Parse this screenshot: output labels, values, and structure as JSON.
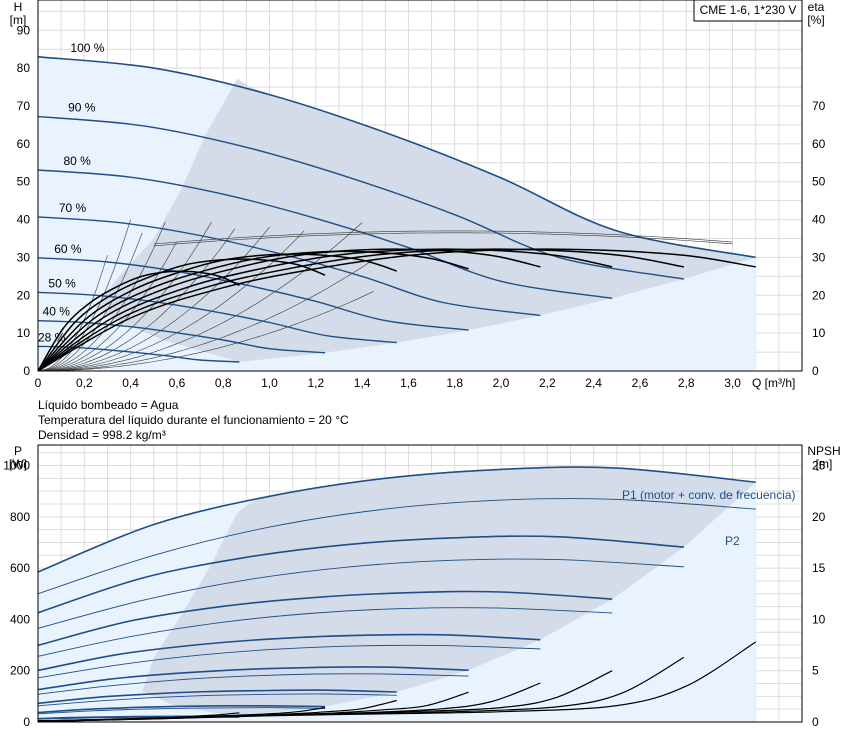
{
  "model_box": "CME 1-6, 1*230 V",
  "notes": [
    "Líquido bombeado = Agua",
    "Temperatura del líquido durante el funcionamiento = 20 °C",
    "Densidad = 998.2 kg/m³"
  ],
  "colors": {
    "grid": "#dcdcdc",
    "axis": "#000000",
    "curve_blue": "#1f4e89",
    "thin_line": "#3a3a3a",
    "region_dark": "#d3dce8",
    "region_light": "#e9f3fd"
  },
  "chart_data": [
    {
      "type": "line",
      "name": "qh",
      "xlabel": "Q [m³/h]",
      "ylabel": "H\n[m]",
      "y2label": "eta\n[%]",
      "xlim": [
        0,
        3.3
      ],
      "ylim": [
        0,
        98
      ],
      "xticks": [
        "0",
        "0,2",
        "0,4",
        "0,6",
        "0,8",
        "1,0",
        "1,2",
        "1,4",
        "1,6",
        "1,8",
        "2,0",
        "2,2",
        "2,4",
        "2,6",
        "2,8",
        "3,0"
      ],
      "yticks": [
        0,
        10,
        20,
        30,
        40,
        50,
        60,
        70,
        80,
        90
      ],
      "y2ticks": [
        0,
        10,
        20,
        30,
        40,
        50,
        60,
        70
      ],
      "grid": true,
      "speed_labels": [
        "100 %",
        "90 %",
        "80 %",
        "70 %",
        "60 %",
        "50 %",
        "40 %",
        "28 %"
      ],
      "speed_fractions": [
        1.0,
        0.9,
        0.8,
        0.7,
        0.6,
        0.5,
        0.4,
        0.28
      ],
      "head_series": [
        {
          "x": [
            0,
            0.5,
            1.0,
            1.5,
            2.0,
            2.5,
            3.1
          ],
          "y": [
            83.0,
            80.0,
            73.0,
            63.0,
            51.0,
            37.0,
            30.0
          ]
        },
        {
          "x": [
            0,
            0.45,
            0.9,
            1.35,
            1.8,
            2.25,
            2.79
          ],
          "y": [
            67.2,
            64.8,
            59.1,
            51.0,
            41.3,
            30.0,
            24.3
          ]
        },
        {
          "x": [
            0,
            0.4,
            0.8,
            1.2,
            1.6,
            2.0,
            2.48
          ],
          "y": [
            53.1,
            51.2,
            46.7,
            40.3,
            32.6,
            23.7,
            19.2
          ]
        },
        {
          "x": [
            0,
            0.35,
            0.7,
            1.05,
            1.4,
            1.75,
            2.17
          ],
          "y": [
            40.7,
            39.2,
            35.8,
            30.9,
            25.0,
            18.1,
            14.7
          ]
        },
        {
          "x": [
            0,
            0.3,
            0.6,
            0.9,
            1.2,
            1.5,
            1.86
          ],
          "y": [
            29.9,
            28.8,
            26.3,
            22.7,
            18.4,
            13.3,
            10.8
          ]
        },
        {
          "x": [
            0,
            0.25,
            0.5,
            0.75,
            1.0,
            1.25,
            1.55
          ],
          "y": [
            20.8,
            20.0,
            18.3,
            15.8,
            12.8,
            9.3,
            7.5
          ]
        },
        {
          "x": [
            0,
            0.2,
            0.4,
            0.6,
            0.8,
            1.0,
            1.24
          ],
          "y": [
            13.3,
            12.8,
            11.7,
            10.1,
            8.2,
            5.9,
            4.8
          ]
        },
        {
          "x": [
            0,
            0.14,
            0.28,
            0.42,
            0.56,
            0.7,
            0.87
          ],
          "y": [
            6.5,
            6.3,
            5.7,
            4.9,
            4.0,
            2.9,
            2.4
          ]
        }
      ],
      "eta_series": [
        {
          "x": [
            0,
            0.4,
            0.8,
            1.2,
            1.6,
            2.0,
            2.4,
            2.8,
            3.1
          ],
          "y": [
            0,
            14.0,
            22.0,
            27.0,
            30.5,
            32.0,
            32.0,
            30.5,
            27.5
          ]
        },
        {
          "x": [
            0,
            0.36,
            0.72,
            1.08,
            1.44,
            1.8,
            2.16,
            2.52,
            2.79
          ],
          "y": [
            0,
            14.0,
            22.0,
            27.0,
            30.5,
            32.0,
            32.0,
            30.5,
            27.5
          ]
        },
        {
          "x": [
            0,
            0.32,
            0.64,
            0.96,
            1.28,
            1.6,
            1.92,
            2.24,
            2.48
          ],
          "y": [
            0,
            14.0,
            22.0,
            27.0,
            30.5,
            32.0,
            32.0,
            30.5,
            27.5
          ]
        },
        {
          "x": [
            0,
            0.28,
            0.56,
            0.84,
            1.12,
            1.4,
            1.68,
            1.96,
            2.17
          ],
          "y": [
            0,
            14.0,
            22.0,
            27.0,
            30.5,
            32.0,
            32.0,
            30.5,
            27.5
          ]
        },
        {
          "x": [
            0,
            0.24,
            0.48,
            0.72,
            0.96,
            1.2,
            1.44,
            1.68,
            1.86
          ],
          "y": [
            0,
            13.8,
            21.6,
            26.5,
            29.9,
            31.4,
            31.4,
            29.9,
            27.0
          ]
        },
        {
          "x": [
            0,
            0.2,
            0.4,
            0.6,
            0.8,
            1.0,
            1.2,
            1.4,
            1.55
          ],
          "y": [
            0,
            13.4,
            21.1,
            25.9,
            29.3,
            30.7,
            30.7,
            29.3,
            26.4
          ]
        },
        {
          "x": [
            0,
            0.16,
            0.32,
            0.48,
            0.64,
            0.8,
            0.96,
            1.12,
            1.24
          ],
          "y": [
            0,
            12.9,
            20.2,
            24.8,
            28.1,
            29.4,
            29.4,
            28.1,
            25.3
          ]
        },
        {
          "x": [
            0,
            0.112,
            0.224,
            0.336,
            0.448,
            0.56,
            0.672,
            0.784,
            0.87
          ],
          "y": [
            0,
            11.5,
            18.0,
            22.1,
            25.0,
            26.2,
            26.2,
            25.0,
            22.6
          ]
        }
      ]
    },
    {
      "type": "line",
      "name": "power_npsh",
      "xlabel": "",
      "ylabel": "P\n[W]",
      "y2label": "NPSH\n[m]",
      "xlim": [
        0,
        3.3
      ],
      "ylim": [
        0,
        1080
      ],
      "y2lim": [
        0,
        27
      ],
      "yticks": [
        0,
        200,
        400,
        600,
        800,
        1000
      ],
      "y2ticks": [
        0,
        5,
        10,
        15,
        20,
        25
      ],
      "grid": true,
      "series_labels": [
        "P1 (motor + conv. de frecuencia)",
        "P2"
      ],
      "p1_series": [
        {
          "x": [
            0,
            0.5,
            1.0,
            1.5,
            2.0,
            2.5,
            3.1
          ],
          "y": [
            585,
            770,
            880,
            950,
            985,
            990,
            935
          ]
        },
        {
          "x": [
            0,
            0.45,
            0.9,
            1.35,
            1.8,
            2.25,
            2.79
          ],
          "y": [
            426,
            561,
            642,
            693,
            718,
            722,
            682
          ]
        },
        {
          "x": [
            0,
            0.4,
            0.8,
            1.2,
            1.6,
            2.0,
            2.48
          ],
          "y": [
            299,
            394,
            451,
            486,
            504,
            507,
            479
          ]
        },
        {
          "x": [
            0,
            0.35,
            0.7,
            1.05,
            1.4,
            1.75,
            2.17
          ],
          "y": [
            201,
            264,
            302,
            326,
            338,
            340,
            321
          ]
        },
        {
          "x": [
            0,
            0.3,
            0.6,
            0.9,
            1.2,
            1.5,
            1.86
          ],
          "y": [
            126,
            166,
            190,
            205,
            213,
            214,
            202
          ]
        },
        {
          "x": [
            0,
            0.25,
            0.5,
            0.75,
            1.0,
            1.25,
            1.55
          ],
          "y": [
            73,
            96,
            110,
            119,
            123,
            124,
            117
          ]
        },
        {
          "x": [
            0,
            0.2,
            0.4,
            0.6,
            0.8,
            1.0,
            1.24
          ],
          "y": [
            37,
            49,
            56,
            61,
            63,
            63,
            60
          ]
        },
        {
          "x": [
            0,
            0.14,
            0.28,
            0.42,
            0.56,
            0.7,
            0.87
          ],
          "y": [
            13,
            17,
            19,
            21,
            22,
            22,
            21
          ]
        }
      ],
      "p2_series": [
        {
          "x": [
            0,
            0.5,
            1.0,
            1.5,
            2.0,
            2.5,
            3.1
          ],
          "y": [
            500,
            650,
            760,
            830,
            865,
            868,
            830
          ]
        },
        {
          "x": [
            0,
            0.45,
            0.9,
            1.35,
            1.8,
            2.25,
            2.79
          ],
          "y": [
            365,
            474,
            554,
            605,
            631,
            633,
            605
          ]
        },
        {
          "x": [
            0,
            0.4,
            0.8,
            1.2,
            1.6,
            2.0,
            2.48
          ],
          "y": [
            256,
            333,
            389,
            425,
            443,
            444,
            425
          ]
        },
        {
          "x": [
            0,
            0.35,
            0.7,
            1.05,
            1.4,
            1.75,
            2.17
          ],
          "y": [
            172,
            223,
            261,
            285,
            297,
            298,
            285
          ]
        },
        {
          "x": [
            0,
            0.3,
            0.6,
            0.9,
            1.2,
            1.5,
            1.86
          ],
          "y": [
            108,
            140,
            164,
            179,
            187,
            187,
            179
          ]
        },
        {
          "x": [
            0,
            0.25,
            0.5,
            0.75,
            1.0,
            1.25,
            1.55
          ],
          "y": [
            63,
            81,
            95,
            104,
            108,
            109,
            104
          ]
        },
        {
          "x": [
            0,
            0.2,
            0.4,
            0.6,
            0.8,
            1.0,
            1.24
          ],
          "y": [
            32,
            42,
            49,
            53,
            55,
            56,
            53
          ]
        },
        {
          "x": [
            0,
            0.14,
            0.28,
            0.42,
            0.56,
            0.7,
            0.87
          ],
          "y": [
            11,
            14,
            17,
            18,
            19,
            19,
            18
          ]
        }
      ],
      "npsh_series": [
        {
          "x": [
            0,
            0.5,
            1.0,
            1.5,
            2.0,
            2.5,
            2.8,
            3.1
          ],
          "y": [
            0.1,
            0.3,
            0.6,
            0.8,
            1.0,
            1.6,
            3.5,
            7.8
          ]
        },
        {
          "x": [
            0,
            0.45,
            0.9,
            1.35,
            1.8,
            2.25,
            2.52,
            2.79
          ],
          "y": [
            0.1,
            0.3,
            0.6,
            0.8,
            1.0,
            1.5,
            2.8,
            6.3
          ]
        },
        {
          "x": [
            0,
            0.4,
            0.8,
            1.2,
            1.6,
            2.0,
            2.24,
            2.48
          ],
          "y": [
            0.1,
            0.3,
            0.6,
            0.8,
            1.0,
            1.4,
            2.4,
            5.0
          ]
        },
        {
          "x": [
            0,
            0.35,
            0.7,
            1.05,
            1.4,
            1.75,
            1.96,
            2.17
          ],
          "y": [
            0.1,
            0.3,
            0.5,
            0.7,
            0.9,
            1.3,
            2.0,
            3.8
          ]
        },
        {
          "x": [
            0,
            0.3,
            0.6,
            0.9,
            1.2,
            1.5,
            1.68,
            1.86
          ],
          "y": [
            0.1,
            0.2,
            0.4,
            0.6,
            0.8,
            1.2,
            1.6,
            2.9
          ]
        },
        {
          "x": [
            0,
            0.25,
            0.5,
            0.75,
            1.0,
            1.25,
            1.4,
            1.55
          ],
          "y": [
            0.1,
            0.2,
            0.3,
            0.5,
            0.7,
            1.0,
            1.3,
            2.1
          ]
        },
        {
          "x": [
            0,
            0.2,
            0.4,
            0.6,
            0.8,
            1.0,
            1.12,
            1.24
          ],
          "y": [
            0.1,
            0.2,
            0.3,
            0.4,
            0.6,
            0.8,
            1.0,
            1.4
          ]
        },
        {
          "x": [
            0,
            0.14,
            0.28,
            0.42,
            0.56,
            0.7,
            0.78,
            0.87
          ],
          "y": [
            0.1,
            0.1,
            0.2,
            0.3,
            0.4,
            0.6,
            0.7,
            0.9
          ]
        }
      ]
    }
  ]
}
